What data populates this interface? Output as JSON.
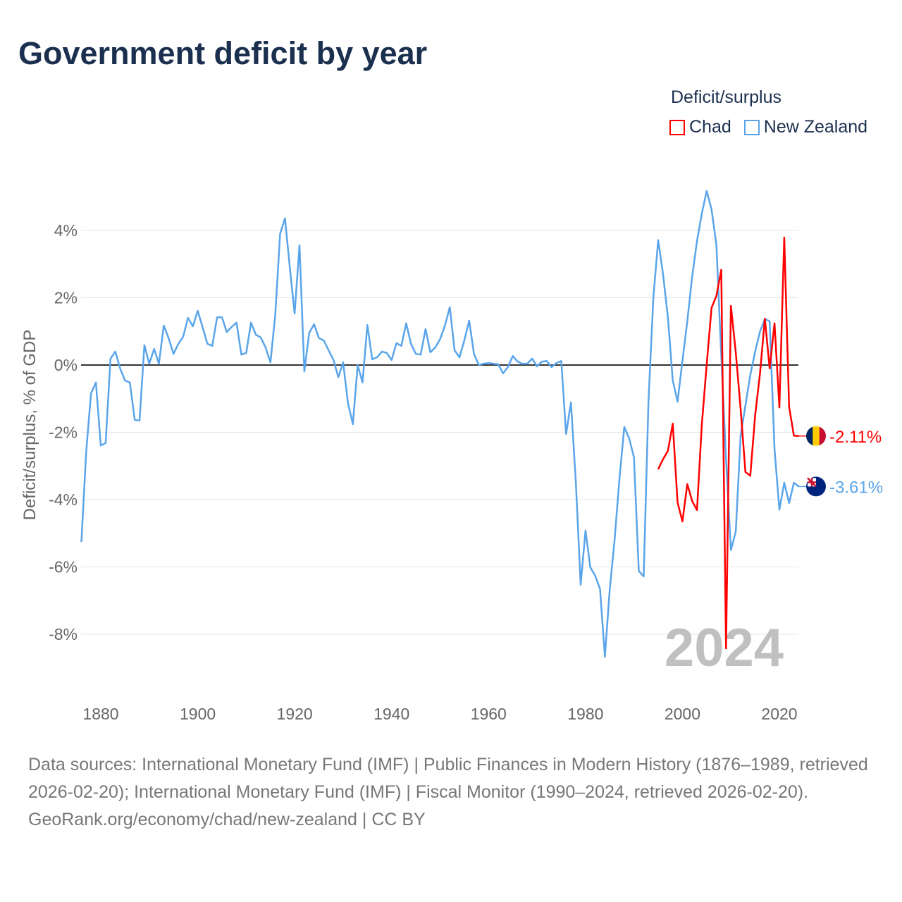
{
  "chart_data": {
    "type": "line",
    "title": "Government deficit by year",
    "ylabel": "Deficit/surplus, % of GDP",
    "xlabel": "",
    "ylim": [
      -9.8,
      5.5
    ],
    "xlim": [
      1876,
      2024
    ],
    "y_ticks": [
      4,
      2,
      0,
      -2,
      -4,
      -6,
      -8
    ],
    "y_tick_labels": [
      "4%",
      "2%",
      "0%",
      "-2%",
      "-4%",
      "-6%",
      "-8%"
    ],
    "x_ticks": [
      1880,
      1900,
      1920,
      1940,
      1960,
      1980,
      2000,
      2020
    ],
    "x_tick_labels": [
      "1880",
      "1900",
      "1920",
      "1940",
      "1960",
      "1980",
      "2000",
      "2020"
    ],
    "grid": true,
    "legend_title": "Deficit/surplus",
    "legend_position": "top-right",
    "watermark_year": "2024",
    "series": [
      {
        "name": "Chad",
        "color": "#ff0000",
        "end_label": "-2.11%",
        "start_year": 1995,
        "values": [
          -3.1,
          -2.8,
          -2.55,
          -1.74,
          -4.08,
          -4.65,
          -3.54,
          -4.04,
          -4.31,
          -1.78,
          0,
          1.7,
          2.05,
          2.83,
          -8.42,
          1.76,
          0.38,
          -1.3,
          -3.18,
          -3.29,
          -1.5,
          -0.25,
          1.38,
          -0.1,
          1.24,
          -1.26,
          3.79,
          -1.24,
          -2.1,
          -2.11
        ]
      },
      {
        "name": "New Zealand",
        "color": "#5aa5ea",
        "end_label": "-3.61%",
        "start_year": 1876,
        "values": [
          -5.26,
          -2.55,
          -0.84,
          -0.52,
          -2.39,
          -2.32,
          0.19,
          0.4,
          -0.1,
          -0.46,
          -0.52,
          -1.63,
          -1.65,
          0.59,
          0.04,
          0.48,
          0.04,
          1.17,
          0.8,
          0.33,
          0.63,
          0.84,
          1.4,
          1.15,
          1.61,
          1.13,
          0.63,
          0.57,
          1.42,
          1.42,
          0.98,
          1.13,
          1.26,
          0.31,
          0.36,
          1.26,
          0.9,
          0.82,
          0.52,
          0.08,
          1.49,
          3.9,
          4.36,
          2.89,
          1.53,
          3.56,
          -0.19,
          0.96,
          1.21,
          0.8,
          0.73,
          0.44,
          0.15,
          -0.36,
          0.08,
          -1.13,
          -1.76,
          0,
          -0.52,
          1.19,
          0.17,
          0.23,
          0.4,
          0.36,
          0.15,
          0.65,
          0.57,
          1.24,
          0.63,
          0.33,
          0.31,
          1.07,
          0.38,
          0.52,
          0.77,
          1.17,
          1.72,
          0.44,
          0.23,
          0.73,
          1.32,
          0.33,
          0,
          0.04,
          0.06,
          0.04,
          0.02,
          -0.25,
          -0.06,
          0.27,
          0.1,
          0.04,
          0.04,
          0.19,
          -0.04,
          0.1,
          0.12,
          -0.06,
          0.06,
          0.12,
          -2.05,
          -1.11,
          -3.46,
          -6.53,
          -4.92,
          -6.01,
          -6.26,
          -6.66,
          -8.67,
          -6.66,
          -5.21,
          -3.39,
          -1.84,
          -2.18,
          -2.74,
          -6.12,
          -6.28,
          -1.03,
          2.01,
          3.71,
          2.7,
          1.42,
          -0.46,
          -1.09,
          0.12,
          1.3,
          2.62,
          3.69,
          4.5,
          5.17,
          4.63,
          3.58,
          0.3,
          -2.8,
          -5.5,
          -4.95,
          -2.1,
          -1.2,
          -0.3,
          0.4,
          1.0,
          1.37,
          1.3,
          -2.5,
          -4.3,
          -3.5,
          -4.1,
          -3.5,
          -3.61
        ]
      }
    ]
  },
  "footer": {
    "sources": "Data sources: International Monetary Fund (IMF) | Public Finances in Modern History (1876–1989, retrieved 2026-02-20); International Monetary Fund (IMF) | Fiscal Monitor (1990–2024, retrieved 2026-02-20).",
    "credit": "GeoRank.org/economy/chad/new-zealand | CC BY"
  }
}
